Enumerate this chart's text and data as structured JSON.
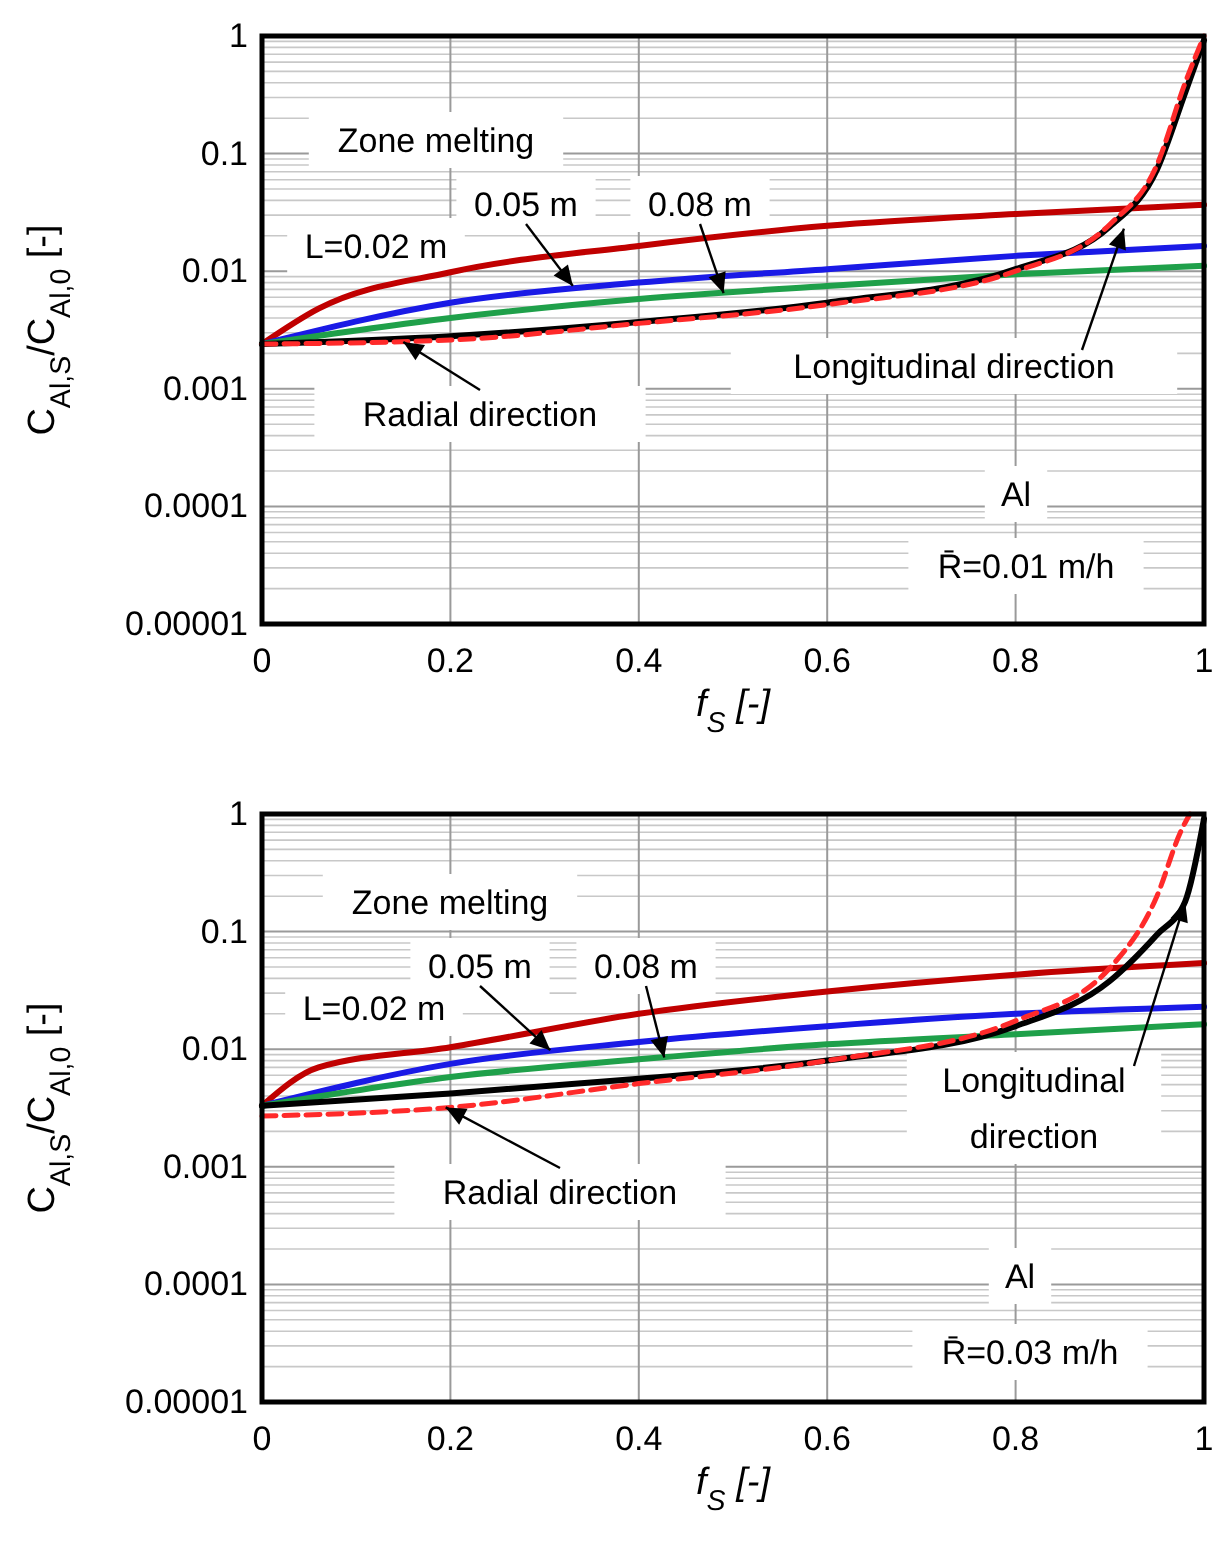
{
  "chart_data": [
    {
      "type": "line",
      "xlabel": "f$_{S}$ [-]",
      "ylabel": "C$_{Al,S}$/C$_{Al,0}$ [-]",
      "log": "y",
      "grid": true,
      "xlim": [
        0,
        1
      ],
      "xticks": [
        0,
        0.2,
        0.4,
        0.6,
        0.8,
        1
      ],
      "ylim": [
        1e-05,
        1
      ],
      "yticks": [
        {
          "value": 1e-05,
          "label": "0.00001"
        },
        0.0001,
        0.001,
        0.01,
        0.1,
        1
      ],
      "series": [
        {
          "color": "#c00000",
          "line_style": "solid",
          "x": [
            0,
            0.06,
            0.2,
            0.4,
            0.6,
            0.8,
            1
          ],
          "values": [
            0.0024,
            0.0048,
            0.0098,
            0.0164,
            0.0243,
            0.0306,
            0.0367
          ]
        },
        {
          "color": "#1a1ae6",
          "line_style": "solid",
          "x": [
            0,
            0.2,
            0.4,
            0.6,
            0.8,
            1
          ],
          "values": [
            0.0024,
            0.0054,
            0.008,
            0.0104,
            0.0135,
            0.0164
          ]
        },
        {
          "color": "#1fa04a",
          "line_style": "solid",
          "x": [
            0,
            0.2,
            0.4,
            0.6,
            0.8,
            1
          ],
          "values": [
            0.0024,
            0.004,
            0.0058,
            0.0075,
            0.0094,
            0.0111
          ]
        },
        {
          "color": "#000000",
          "line_style": "solid",
          "x": [
            0,
            0.2,
            0.4,
            0.6,
            0.8,
            0.9,
            0.95,
            0.98,
            1
          ],
          "values": [
            0.0024,
            0.0028,
            0.0037,
            0.0054,
            0.0104,
            0.024,
            0.073,
            0.33,
            0.92
          ]
        },
        {
          "color": "#ff2a2a",
          "line_style": "dashed",
          "x": [
            0,
            0.2,
            0.4,
            0.6,
            0.8,
            0.9,
            0.95,
            0.98,
            1
          ],
          "values": [
            0.0024,
            0.0026,
            0.0036,
            0.0052,
            0.01,
            0.025,
            0.08,
            0.4,
            1
          ]
        }
      ],
      "annotations": [
        "Zone melting",
        "L=0.02 m",
        {
          "text": "0.05 m",
          "x": 0.33,
          "y": 0.0075
        },
        {
          "text": "0.08 m",
          "x": 0.49,
          "y": 0.0065
        },
        {
          "text": "Radial direction",
          "x": 0.15,
          "y": 0.0025
        },
        {
          "text": "Longitudinal direction",
          "x": 0.915,
          "y": 0.023
        },
        "Al",
        "R̄=0.01 m/h"
      ]
    },
    {
      "type": "line",
      "xlabel": "f$_{S}$ [-]",
      "ylabel": "C$_{Al,S}$/C$_{Al,0}$ [-]",
      "log": "y",
      "grid": true,
      "xlim": [
        0,
        1
      ],
      "xticks": [
        0,
        0.2,
        0.4,
        0.6,
        0.8,
        1
      ],
      "ylim": [
        1e-05,
        1
      ],
      "yticks": [
        {
          "value": 1e-05,
          "label": "0.00001"
        },
        0.0001,
        0.001,
        0.01,
        0.1,
        1
      ],
      "series": [
        {
          "color": "#c00000",
          "line_style": "solid",
          "x": [
            0,
            0.06,
            0.2,
            0.4,
            0.6,
            0.8,
            1
          ],
          "values": [
            0.0033,
            0.007,
            0.0104,
            0.02,
            0.031,
            0.043,
            0.054
          ]
        },
        {
          "color": "#1a1ae6",
          "line_style": "solid",
          "x": [
            0,
            0.2,
            0.4,
            0.6,
            0.8,
            1
          ],
          "values": [
            0.0033,
            0.0075,
            0.0115,
            0.0157,
            0.02,
            0.023
          ]
        },
        {
          "color": "#1fa04a",
          "line_style": "solid",
          "x": [
            0,
            0.2,
            0.4,
            0.6,
            0.8,
            1
          ],
          "values": [
            0.0033,
            0.0058,
            0.0082,
            0.011,
            0.0134,
            0.0163
          ]
        },
        {
          "color": "#000000",
          "line_style": "solid",
          "x": [
            0,
            0.2,
            0.4,
            0.6,
            0.8,
            0.9,
            0.95,
            0.98,
            1
          ],
          "values": [
            0.0033,
            0.0042,
            0.0056,
            0.008,
            0.0157,
            0.038,
            0.094,
            0.18,
            0.91
          ]
        },
        {
          "color": "#ff2a2a",
          "line_style": "dashed",
          "x": [
            0,
            0.2,
            0.4,
            0.6,
            0.8,
            0.9,
            0.95,
            0.975,
            0.985
          ],
          "values": [
            0.0027,
            0.0032,
            0.0051,
            0.008,
            0.0174,
            0.049,
            0.2,
            0.7,
            1
          ]
        }
      ],
      "annotations": [
        "Zone melting",
        "L=0.02 m",
        {
          "text": "0.05 m",
          "x": 0.306,
          "y": 0.0098
        },
        {
          "text": "0.08 m",
          "x": 0.427,
          "y": 0.0085
        },
        {
          "text": "Radial direction",
          "x": 0.195,
          "y": 0.0032
        },
        {
          "text": "Longitudinal direction",
          "x": 0.98,
          "y": 0.18
        },
        "Al",
        "R̄=0.03 m/h"
      ]
    }
  ]
}
